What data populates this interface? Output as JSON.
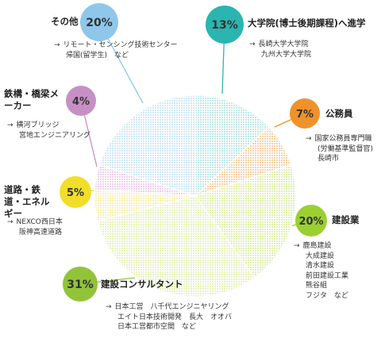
{
  "chart_data": {
    "type": "pie",
    "slices": [
      {
        "label": "大学院(博士後期課程)へ進学",
        "value": 13,
        "percent_label": "13%",
        "color": "#2bb5b0",
        "fill": "#bfe6e4",
        "notes": [
          "長崎大学大学院",
          "九州大学大学院"
        ]
      },
      {
        "label": "公務員",
        "value": 7,
        "percent_label": "7%",
        "color": "#f0922a",
        "fill": "#f8d1a6",
        "notes": [
          "国家公務員専門職",
          "(労働基準監督官)",
          "長崎市"
        ]
      },
      {
        "label": "建設業",
        "value": 20,
        "percent_label": "20%",
        "color": "#9ccf30",
        "fill": "#dff0b0",
        "notes": [
          "鹿島建設",
          "大成建設",
          "清水建設",
          "前田建設工業",
          "熊谷組",
          "フジタ　など"
        ]
      },
      {
        "label": "建設コンサルタント",
        "value": 31,
        "percent_label": "31%",
        "color": "#92c43a",
        "fill": "#e7f2be",
        "notes": [
          "日本工営　八千代エンジニヤリング",
          "エイト日本技術開発　長大　オオバ",
          "日本工営都市空間　など"
        ]
      },
      {
        "label": "道路・鉄道・エネルギー",
        "value": 5,
        "percent_label": "5%",
        "color": "#f2de2a",
        "fill": "#f8f0b4",
        "notes": [
          "NEXCO西日本",
          "阪神高速道路"
        ]
      },
      {
        "label": "鉄構・橋梁メーカー",
        "value": 4,
        "percent_label": "4%",
        "color": "#c690c4",
        "fill": "#ecd0ea",
        "notes": [
          "横河ブリッジ",
          "宮地エンジニアリング"
        ]
      },
      {
        "label": "その他",
        "value": 20,
        "percent_label": "20%",
        "color": "#8ec7ea",
        "fill": "#cfe7f7",
        "notes": [
          "リモート・センシング技術センター",
          "帰国(留学生)　など"
        ]
      }
    ]
  }
}
